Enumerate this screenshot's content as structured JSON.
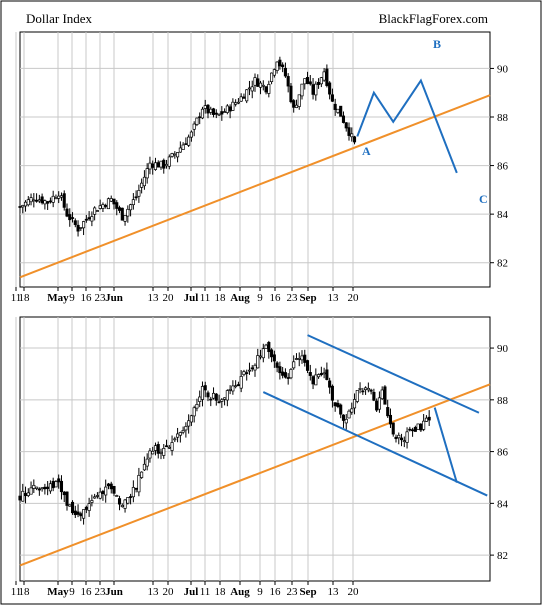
{
  "header": {
    "title": "Dollar Index",
    "source": "BlackFlagForex.com"
  },
  "colors": {
    "candle_up": "#ffffff",
    "candle_down": "#000000",
    "trendline": "#f0902a",
    "projection": "#1f6fc0",
    "grid": "#c8c8c8",
    "frame": "#000000"
  },
  "axes": {
    "x_ticks": [
      {
        "label": "11",
        "bold": false
      },
      {
        "label": "18",
        "bold": false
      },
      {
        "label": "May",
        "bold": true
      },
      {
        "label": "9",
        "bold": false
      },
      {
        "label": "16",
        "bold": false
      },
      {
        "label": "23",
        "bold": false
      },
      {
        "label": "Jun",
        "bold": true
      },
      {
        "label": "13",
        "bold": false
      },
      {
        "label": "20",
        "bold": false
      },
      {
        "label": "Jul",
        "bold": true
      },
      {
        "label": "11",
        "bold": false
      },
      {
        "label": "18",
        "bold": false
      },
      {
        "label": "Aug",
        "bold": true
      },
      {
        "label": "9",
        "bold": false
      },
      {
        "label": "16",
        "bold": false
      },
      {
        "label": "23",
        "bold": false
      },
      {
        "label": "Sep",
        "bold": true
      },
      {
        "label": "13",
        "bold": false
      },
      {
        "label": "20",
        "bold": false
      }
    ],
    "y_ticks": [
      "82",
      "84",
      "86",
      "88",
      "90"
    ]
  },
  "chart_data": [
    {
      "type": "candlestick",
      "title": "Dollar Index",
      "ylim": [
        81,
        91.5
      ],
      "y_ticks": [
        82,
        84,
        86,
        88,
        90
      ],
      "close_path": [
        [
          0,
          84.3
        ],
        [
          5,
          84.7
        ],
        [
          10,
          84.5
        ],
        [
          14,
          84.9
        ],
        [
          17,
          84.0
        ],
        [
          21,
          83.4
        ],
        [
          27,
          84.2
        ],
        [
          33,
          84.6
        ],
        [
          37,
          83.9
        ],
        [
          42,
          84.7
        ],
        [
          47,
          86.1
        ],
        [
          52,
          86.0
        ],
        [
          57,
          86.6
        ],
        [
          62,
          87.3
        ],
        [
          66,
          88.4
        ],
        [
          71,
          88.0
        ],
        [
          76,
          88.4
        ],
        [
          80,
          88.8
        ],
        [
          85,
          89.5
        ],
        [
          89,
          89.2
        ],
        [
          93,
          90.4
        ],
        [
          96,
          89.7
        ],
        [
          99,
          88.3
        ],
        [
          103,
          89.6
        ],
        [
          106,
          89.0
        ],
        [
          110,
          89.9
        ],
        [
          113,
          88.6
        ],
        [
          116,
          88.1
        ],
        [
          119,
          87.4
        ],
        [
          121,
          86.9
        ]
      ],
      "trendline": {
        "from": [
          0,
          81.4
        ],
        "to": [
          170,
          88.9
        ]
      },
      "projection": {
        "points": [
          [
            122,
            87.2
          ],
          [
            128,
            89.0
          ],
          [
            135,
            87.8
          ],
          [
            145,
            89.5
          ],
          [
            158,
            85.7
          ]
        ]
      },
      "annotations": [
        "A",
        "B",
        "C"
      ]
    },
    {
      "type": "candlestick",
      "ylim": [
        81,
        91.2
      ],
      "y_ticks": [
        82,
        84,
        86,
        88,
        90
      ],
      "close_path": [
        [
          0,
          84.3
        ],
        [
          5,
          84.7
        ],
        [
          10,
          84.5
        ],
        [
          14,
          84.9
        ],
        [
          17,
          84.0
        ],
        [
          21,
          83.4
        ],
        [
          27,
          84.2
        ],
        [
          33,
          84.6
        ],
        [
          37,
          83.9
        ],
        [
          42,
          84.7
        ],
        [
          47,
          86.1
        ],
        [
          52,
          86.0
        ],
        [
          57,
          86.6
        ],
        [
          62,
          87.3
        ],
        [
          66,
          88.4
        ],
        [
          71,
          88.0
        ],
        [
          76,
          88.4
        ],
        [
          80,
          88.8
        ],
        [
          85,
          89.5
        ],
        [
          89,
          90.0
        ],
        [
          92,
          89.6
        ],
        [
          96,
          88.7
        ],
        [
          99,
          89.4
        ],
        [
          103,
          89.6
        ],
        [
          106,
          88.7
        ],
        [
          110,
          89.2
        ],
        [
          113,
          88.1
        ],
        [
          116,
          87.3
        ],
        [
          119,
          87.4
        ],
        [
          122,
          88.2
        ],
        [
          126,
          88.5
        ],
        [
          129,
          87.7
        ],
        [
          131,
          88.4
        ],
        [
          134,
          86.9
        ],
        [
          138,
          86.4
        ],
        [
          141,
          86.9
        ],
        [
          145,
          87.0
        ],
        [
          148,
          87.3
        ]
      ],
      "trendline": {
        "from": [
          0,
          81.6
        ],
        "to": [
          170,
          88.6
        ]
      },
      "channel_upper": {
        "from": [
          104,
          90.5
        ],
        "to": [
          166,
          87.5
        ]
      },
      "channel_lower": {
        "from": [
          88,
          88.3
        ],
        "to": [
          169,
          84.3
        ]
      },
      "projection": {
        "points": [
          [
            150,
            87.7
          ],
          [
            158,
            84.8
          ]
        ]
      }
    }
  ]
}
